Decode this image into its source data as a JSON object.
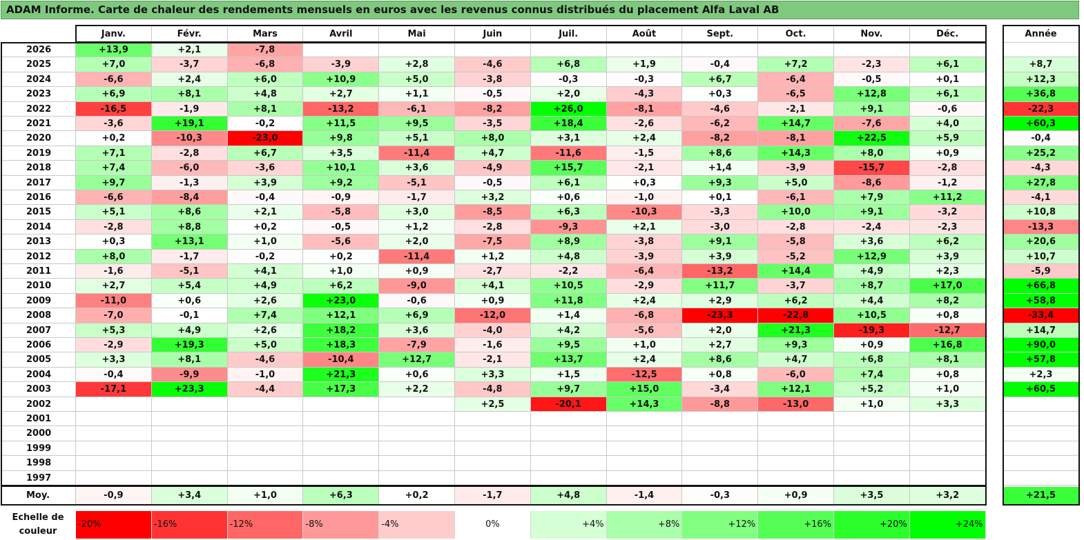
{
  "title": "ADAM Informe. Carte de chaleur des rendements mensuels en euros avec les revenus connus distribués du placement Alfa Laval AB",
  "chart_data": {
    "type": "heatmap",
    "columns": [
      "Janv.",
      "Févr.",
      "Mars",
      "Avril",
      "Mai",
      "Juin",
      "Juil.",
      "Août",
      "Sept.",
      "Oct.",
      "Nov.",
      "Déc."
    ],
    "year_column_label": "Année",
    "rows": [
      {
        "year": "2026",
        "values": [
          "+13,9",
          "+2,1",
          "-7,8",
          "",
          "",
          "",
          "",
          "",
          "",
          "",
          "",
          ""
        ],
        "annual": ""
      },
      {
        "year": "2025",
        "values": [
          "+7,0",
          "-3,7",
          "-6,8",
          "-3,9",
          "+2,8",
          "-4,6",
          "+6,8",
          "+1,9",
          "-0,4",
          "+7,2",
          "-2,3",
          "+6,1"
        ],
        "annual": "+8,7"
      },
      {
        "year": "2024",
        "values": [
          "-6,6",
          "+2,4",
          "+6,0",
          "+10,9",
          "+5,0",
          "-3,8",
          "-0,3",
          "-0,3",
          "+6,7",
          "-6,4",
          "-0,5",
          "+0,1"
        ],
        "annual": "+12,3"
      },
      {
        "year": "2023",
        "values": [
          "+6,9",
          "+8,1",
          "+4,8",
          "+2,7",
          "+1,1",
          "-0,5",
          "+2,0",
          "-4,3",
          "+0,3",
          "-6,5",
          "+12,8",
          "+6,1"
        ],
        "annual": "+36,8"
      },
      {
        "year": "2022",
        "values": [
          "-16,5",
          "-1,9",
          "+8,1",
          "-13,2",
          "-6,1",
          "-8,2",
          "+26,0",
          "-8,1",
          "-4,6",
          "-2,1",
          "+9,1",
          "-0,6"
        ],
        "annual": "-22,3"
      },
      {
        "year": "2021",
        "values": [
          "-3,6",
          "+19,1",
          "-0,2",
          "+11,5",
          "+9,5",
          "-3,5",
          "+18,4",
          "-2,6",
          "-6,2",
          "+14,7",
          "-7,6",
          "+4,0"
        ],
        "annual": "+60,3"
      },
      {
        "year": "2020",
        "values": [
          "+0,2",
          "-10,3",
          "-23,0",
          "+9,8",
          "+5,1",
          "+8,0",
          "+3,1",
          "+2,4",
          "-8,2",
          "-8,1",
          "+22,5",
          "+5,9"
        ],
        "annual": "-0,4"
      },
      {
        "year": "2019",
        "values": [
          "+7,1",
          "-2,8",
          "+6,7",
          "+3,5",
          "-11,4",
          "+4,7",
          "-11,6",
          "-1,5",
          "+8,6",
          "+14,3",
          "+8,0",
          "+0,9"
        ],
        "annual": "+25,2"
      },
      {
        "year": "2018",
        "values": [
          "+7,4",
          "-6,0",
          "-3,6",
          "+10,1",
          "+3,6",
          "-4,9",
          "+15,7",
          "-2,1",
          "+1,4",
          "-3,9",
          "-15,7",
          "-2,8"
        ],
        "annual": "-4,3"
      },
      {
        "year": "2017",
        "values": [
          "+9,7",
          "-1,3",
          "+3,9",
          "+9,2",
          "-5,1",
          "-0,5",
          "+6,1",
          "+0,3",
          "+9,3",
          "+5,0",
          "-8,6",
          "-1,2"
        ],
        "annual": "+27,8"
      },
      {
        "year": "2016",
        "values": [
          "-6,6",
          "-8,4",
          "-0,4",
          "-0,9",
          "-1,7",
          "+3,2",
          "+0,6",
          "-1,0",
          "+0,1",
          "-6,1",
          "+7,9",
          "+11,2"
        ],
        "annual": "-4,1"
      },
      {
        "year": "2015",
        "values": [
          "+5,1",
          "+8,6",
          "+2,1",
          "-5,8",
          "+3,0",
          "-8,5",
          "+6,3",
          "-10,3",
          "-3,3",
          "+10,0",
          "+9,1",
          "-3,2"
        ],
        "annual": "+10,8"
      },
      {
        "year": "2014",
        "values": [
          "-2,8",
          "+8,8",
          "+0,2",
          "-0,5",
          "+1,2",
          "-2,8",
          "-9,3",
          "+2,1",
          "-3,0",
          "-2,8",
          "-2,4",
          "-2,3"
        ],
        "annual": "-13,3"
      },
      {
        "year": "2013",
        "values": [
          "+0,3",
          "+13,1",
          "+1,0",
          "-5,6",
          "+2,0",
          "-7,5",
          "+8,9",
          "-3,8",
          "+9,1",
          "-5,8",
          "+3,6",
          "+6,2"
        ],
        "annual": "+20,6"
      },
      {
        "year": "2012",
        "values": [
          "+8,0",
          "-1,7",
          "-0,2",
          "+0,2",
          "-11,4",
          "+1,2",
          "+4,8",
          "-3,9",
          "+3,9",
          "-5,2",
          "+12,9",
          "+3,9"
        ],
        "annual": "+10,7"
      },
      {
        "year": "2011",
        "values": [
          "-1,6",
          "-5,1",
          "+4,1",
          "+1,0",
          "+0,9",
          "-2,7",
          "-2,2",
          "-6,4",
          "-13,2",
          "+14,4",
          "+4,9",
          "+2,3"
        ],
        "annual": "-5,9"
      },
      {
        "year": "2010",
        "values": [
          "+2,7",
          "+5,4",
          "+4,9",
          "+6,2",
          "-9,0",
          "+4,1",
          "+10,5",
          "-2,9",
          "+11,7",
          "-3,7",
          "+8,7",
          "+17,0"
        ],
        "annual": "+66,8"
      },
      {
        "year": "2009",
        "values": [
          "-11,0",
          "+0,6",
          "+2,6",
          "+23,0",
          "-0,6",
          "+0,9",
          "+11,8",
          "+2,4",
          "+2,9",
          "+6,2",
          "+4,4",
          "+8,2"
        ],
        "annual": "+58,8"
      },
      {
        "year": "2008",
        "values": [
          "-7,0",
          "-0,1",
          "+7,4",
          "+12,1",
          "+6,9",
          "-12,0",
          "+1,4",
          "-6,8",
          "-23,3",
          "-22,8",
          "+10,5",
          "+0,8"
        ],
        "annual": "-33,4"
      },
      {
        "year": "2007",
        "values": [
          "+5,3",
          "+4,9",
          "+2,6",
          "+18,2",
          "+3,6",
          "-4,0",
          "+4,2",
          "-5,6",
          "+2,0",
          "+21,3",
          "-19,3",
          "-12,7"
        ],
        "annual": "+14,7"
      },
      {
        "year": "2006",
        "values": [
          "-2,9",
          "+19,3",
          "+5,0",
          "+18,3",
          "-7,9",
          "-1,6",
          "+9,5",
          "+1,0",
          "+2,7",
          "+9,3",
          "+0,9",
          "+16,8"
        ],
        "annual": "+90,0"
      },
      {
        "year": "2005",
        "values": [
          "+3,3",
          "+8,1",
          "-4,6",
          "-10,4",
          "+12,7",
          "-2,1",
          "+13,7",
          "+2,4",
          "+8,6",
          "+4,7",
          "+6,8",
          "+8,1"
        ],
        "annual": "+57,8"
      },
      {
        "year": "2004",
        "values": [
          "-0,4",
          "-9,9",
          "-1,0",
          "+21,3",
          "+0,6",
          "+3,3",
          "+1,5",
          "-12,5",
          "+0,8",
          "-6,0",
          "+7,4",
          "+0,8"
        ],
        "annual": "+2,3"
      },
      {
        "year": "2003",
        "values": [
          "-17,1",
          "+23,3",
          "-4,4",
          "+17,3",
          "+2,2",
          "-4,8",
          "+9,7",
          "+15,0",
          "-3,4",
          "+12,1",
          "+5,2",
          "+1,0"
        ],
        "annual": "+60,5"
      },
      {
        "year": "2002",
        "values": [
          "",
          "",
          "",
          "",
          "",
          "+2,5",
          "-20,1",
          "+14,3",
          "-8,8",
          "-13,0",
          "+1,0",
          "+3,3"
        ],
        "annual": ""
      },
      {
        "year": "2001",
        "values": [
          "",
          "",
          "",
          "",
          "",
          "",
          "",
          "",
          "",
          "",
          "",
          ""
        ],
        "annual": ""
      },
      {
        "year": "2000",
        "values": [
          "",
          "",
          "",
          "",
          "",
          "",
          "",
          "",
          "",
          "",
          "",
          ""
        ],
        "annual": ""
      },
      {
        "year": "1999",
        "values": [
          "",
          "",
          "",
          "",
          "",
          "",
          "",
          "",
          "",
          "",
          "",
          ""
        ],
        "annual": ""
      },
      {
        "year": "1998",
        "values": [
          "",
          "",
          "",
          "",
          "",
          "",
          "",
          "",
          "",
          "",
          "",
          ""
        ],
        "annual": ""
      },
      {
        "year": "1997",
        "values": [
          "",
          "",
          "",
          "",
          "",
          "",
          "",
          "",
          "",
          "",
          "",
          ""
        ],
        "annual": ""
      }
    ],
    "average": {
      "label": "Moy.",
      "values": [
        "-0,9",
        "+3,4",
        "+1,0",
        "+6,3",
        "+0,2",
        "-1,7",
        "+4,8",
        "-1,4",
        "-0,3",
        "+0,9",
        "+3,5",
        "+3,2"
      ],
      "annual": "+21,5"
    },
    "color_scale": {
      "label": "Echelle de couleur",
      "stops": [
        "-20%",
        "-16%",
        "-12%",
        "-8%",
        "-4%",
        "0%",
        "+4%",
        "+8%",
        "+12%",
        "+16%",
        "+20%",
        "+24%"
      ],
      "negative_color": "#ff0000",
      "neutral_color": "#ffffff",
      "positive_color": "#00ff00"
    }
  }
}
